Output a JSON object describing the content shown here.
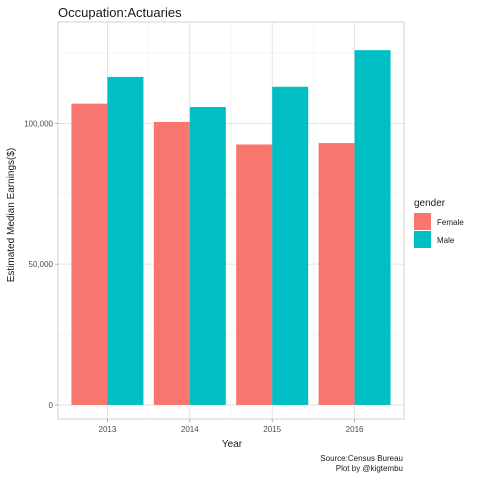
{
  "chart_data": {
    "type": "bar",
    "title": "Occupation:Actuaries",
    "xlabel": "Year",
    "ylabel": "Estimated Median Earnings($)",
    "categories": [
      "2013",
      "2014",
      "2015",
      "2016"
    ],
    "series": [
      {
        "name": "Female",
        "color": "#F8766D",
        "values": [
          107000,
          100500,
          92500,
          93000
        ]
      },
      {
        "name": "Male",
        "color": "#00BFC4",
        "values": [
          116500,
          105800,
          113000,
          126000
        ]
      }
    ],
    "ylim": [
      -5000,
      136000
    ],
    "yticks": [
      0,
      50000,
      100000
    ],
    "ytick_labels": [
      "0",
      "50,000",
      "100,000"
    ],
    "legend": {
      "title": "gender",
      "position": "right"
    },
    "grid": true,
    "caption_lines": [
      "Source:Census Bureau",
      "Plot by @kigtembu"
    ]
  }
}
